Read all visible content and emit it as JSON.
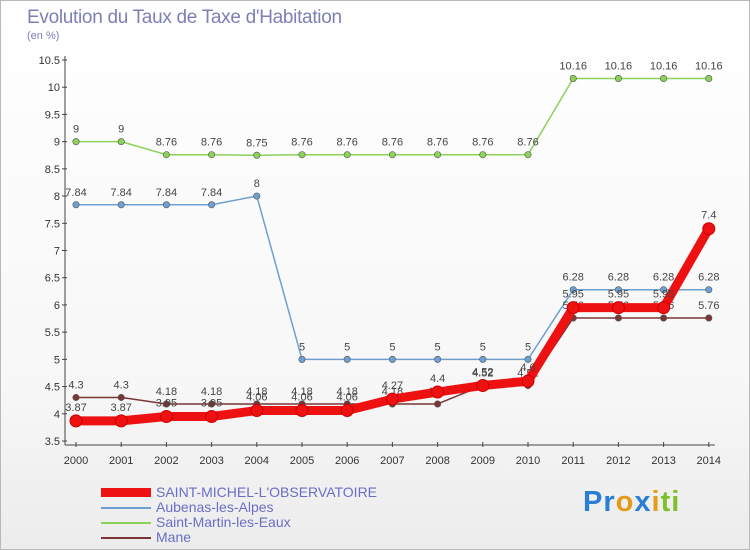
{
  "title": "Evolution du Taux de Taxe d'Habitation",
  "unit_label": "(en %)",
  "logo": {
    "text": "Proxiti",
    "letters": [
      "P",
      "r",
      "o",
      "x",
      "i",
      "t",
      "i"
    ],
    "colors": [
      "#2a7fd4",
      "#2a7fd4",
      "#e69a1a",
      "#2a7fd4",
      "#e69a1a",
      "#7fbf2a",
      "#7fbf2a"
    ]
  },
  "chart_data": {
    "type": "line",
    "title": "Evolution du Taux de Taxe d'Habitation",
    "ylabel": "(en %)",
    "xlabel": "",
    "ylim": [
      3.5,
      10.5
    ],
    "yticks": [
      "3.5",
      "4",
      "4.5",
      "5",
      "5.5",
      "6",
      "6.5",
      "7",
      "7.5",
      "8",
      "8.5",
      "9",
      "9.5",
      "10",
      "10.5"
    ],
    "categories": [
      "2000",
      "2001",
      "2002",
      "2003",
      "2004",
      "2005",
      "2006",
      "2007",
      "2008",
      "2009",
      "2010",
      "2011",
      "2012",
      "2013",
      "2014"
    ],
    "grid": false,
    "series": [
      {
        "name": "Saint-Martin-les-Eaux",
        "color": "#8bd15a",
        "width": 1.5,
        "values": [
          9,
          9,
          8.76,
          8.76,
          8.75,
          8.76,
          8.76,
          8.76,
          8.76,
          8.76,
          8.76,
          10.16,
          10.16,
          10.16,
          10.16
        ],
        "labels": [
          "9",
          "9",
          "8.76",
          "8.76",
          "8.75",
          "8.76",
          "8.76",
          "8.76",
          "8.76",
          "8.76",
          "8.76",
          "10.16",
          "10.16",
          "10.16",
          "10.16"
        ]
      },
      {
        "name": "Aubenas-les-Alpes",
        "color": "#6f9fd0",
        "width": 1.5,
        "values": [
          7.84,
          7.84,
          7.84,
          7.84,
          8,
          5,
          5,
          5,
          5,
          5,
          5,
          6.28,
          6.28,
          6.28,
          6.28
        ],
        "labels": [
          "7.84",
          "7.84",
          "7.84",
          "7.84",
          "8",
          "5",
          "5",
          "5",
          "5",
          "5",
          "5",
          "6.28",
          "6.28",
          "6.28",
          "6.28"
        ]
      },
      {
        "name": "Mane",
        "color": "#7a3535",
        "width": 1.5,
        "values": [
          4.3,
          4.3,
          4.18,
          4.18,
          4.18,
          4.18,
          4.18,
          4.18,
          4.18,
          4.52,
          4.52,
          5.76,
          5.76,
          5.76,
          5.76
        ],
        "labels": [
          "4.3",
          "4.3",
          "4.18",
          "4.18",
          "4.18",
          "4.18",
          "4.18",
          "4.18",
          "4.18",
          "4.52",
          "4.52",
          "5.76",
          "5.76",
          "5.76",
          "5.76"
        ]
      },
      {
        "name": "SAINT-MICHEL-L'OBSERVATOIRE",
        "color": "#ee1111",
        "width": 9,
        "values": [
          3.87,
          3.87,
          3.95,
          3.95,
          4.06,
          4.06,
          4.06,
          4.27,
          4.4,
          4.52,
          4.6,
          5.95,
          5.95,
          5.95,
          7.4
        ],
        "labels": [
          "3.87",
          "3.87",
          "3.95",
          "3.95",
          "4.06",
          "4.06",
          "4.06",
          "4.27",
          "4.4",
          "4.52",
          "4.6",
          "5.95",
          "5.95",
          "5.95",
          "7.4"
        ]
      }
    ]
  },
  "legend": [
    {
      "label": "SAINT-MICHEL-L'OBSERVATOIRE",
      "color": "#ee1111",
      "thick": true
    },
    {
      "label": "Aubenas-les-Alpes",
      "color": "#6f9fd0",
      "thick": false
    },
    {
      "label": "Saint-Martin-les-Eaux",
      "color": "#8bd15a",
      "thick": false
    },
    {
      "label": "Mane",
      "color": "#7a3535",
      "thick": false
    }
  ]
}
